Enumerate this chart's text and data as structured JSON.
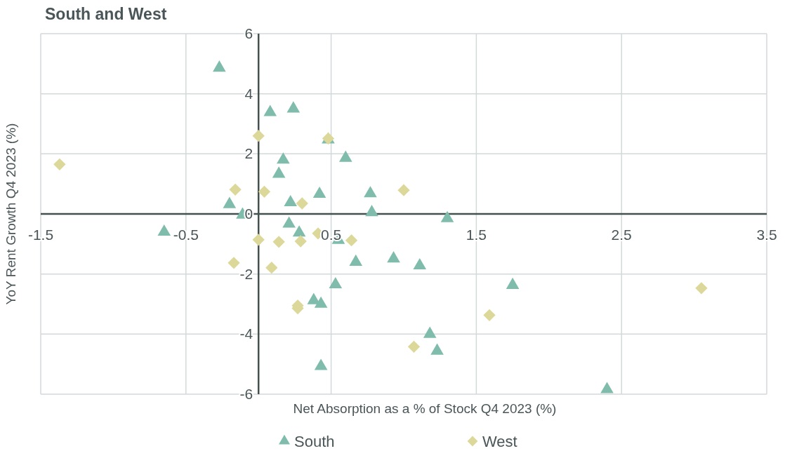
{
  "chart_data": {
    "type": "scatter",
    "title": "South and West",
    "xlabel": "Net Absorption as a % of Stock Q4 2023 (%)",
    "ylabel": "YoY Rent Growth Q4 2023 (%)",
    "xlim": [
      -1.5,
      3.5
    ],
    "xticks": [
      -1.5,
      -0.5,
      0.5,
      1.5,
      2.5,
      3.5
    ],
    "ylim": [
      -6,
      6
    ],
    "yticks": [
      -6,
      -4,
      -2,
      0,
      2,
      4,
      6
    ],
    "grid": true,
    "legend": "bottom",
    "series": [
      {
        "name": "South",
        "color": "#7fbcab",
        "marker": "triangle",
        "x": [
          -0.27,
          0.08,
          0.24,
          0.48,
          0.6,
          0.17,
          0.14,
          0.42,
          0.77,
          0.22,
          -0.2,
          -0.11,
          0.78,
          1.3,
          0.21,
          0.28,
          -0.65,
          0.55,
          0.67,
          0.93,
          1.11,
          0.53,
          0.38,
          0.43,
          0.43,
          1.18,
          1.23,
          1.75,
          2.4
        ],
        "values": [
          4.86,
          3.38,
          3.5,
          2.47,
          1.86,
          1.8,
          1.33,
          0.66,
          0.68,
          0.38,
          0.32,
          -0.03,
          0.05,
          -0.15,
          -0.33,
          -0.63,
          -0.6,
          -0.87,
          -1.6,
          -1.49,
          -1.72,
          -2.35,
          -2.88,
          -3.0,
          -5.07,
          -4.0,
          -4.56,
          -2.37,
          -5.84
        ]
      },
      {
        "name": "West",
        "color": "#dcd89a",
        "marker": "diamond",
        "x": [
          -1.37,
          0,
          0.48,
          -0.16,
          0.04,
          0.3,
          1.0,
          0.41,
          0,
          0.14,
          0.29,
          0.64,
          -0.17,
          0.09,
          0.27,
          0.27,
          1.07,
          1.59,
          3.05
        ],
        "values": [
          1.65,
          2.6,
          2.51,
          0.81,
          0.74,
          0.35,
          0.79,
          -0.65,
          -0.86,
          -0.93,
          -0.91,
          -0.88,
          -1.63,
          -1.79,
          -3.05,
          -3.14,
          -4.42,
          -3.37,
          -2.47
        ]
      }
    ]
  }
}
